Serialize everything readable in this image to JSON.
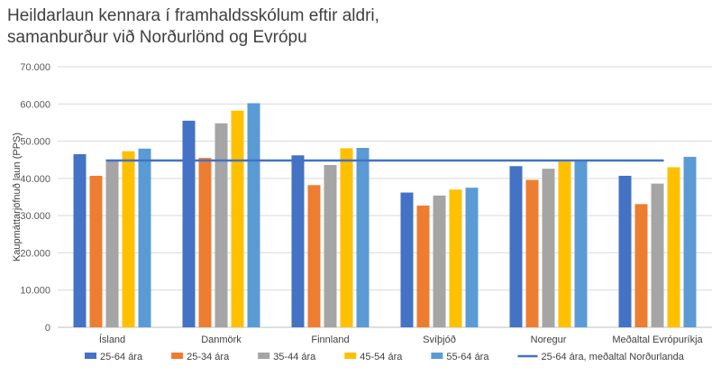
{
  "title": {
    "line1": "Heildarlaun kennara í framhaldsskólum eftir aldri,",
    "line2": "samanburður við Norðurlönd og Evrópu"
  },
  "chart_data": {
    "type": "bar",
    "title": "Heildarlaun kennara í framhaldsskólum eftir aldri, samanburður við Norðurlönd og Evrópu",
    "ylabel": "Kaupmáttarjöfnuð laun (PPS)",
    "xlabel": "",
    "ylim": [
      0,
      70000
    ],
    "yticks": [
      "0",
      "10.000",
      "20.000",
      "30.000",
      "40.000",
      "50.000",
      "60.000",
      "70.000"
    ],
    "grid": true,
    "legend_position": "bottom",
    "categories": [
      "Ísland",
      "Danmörk",
      "Finnland",
      "Svíþjóð",
      "Noregur",
      "Meðaltal Evrópuríkja"
    ],
    "series": [
      {
        "name": "25-64 ára",
        "color": "#4472C4",
        "values": [
          46500,
          55500,
          46200,
          36200,
          43300,
          40700
        ]
      },
      {
        "name": "25-34 ára",
        "color": "#ED7D31",
        "values": [
          40700,
          45500,
          38200,
          32700,
          39600,
          33100
        ]
      },
      {
        "name": "35-44 ára",
        "color": "#A5A5A5",
        "values": [
          44800,
          54800,
          43600,
          35400,
          42600,
          38600
        ]
      },
      {
        "name": "45-54 ára",
        "color": "#FFC000",
        "values": [
          47300,
          58200,
          48100,
          37000,
          44500,
          43000
        ]
      },
      {
        "name": "55-64 ára",
        "color": "#5B9BD5",
        "values": [
          48000,
          60200,
          48200,
          37500,
          45000,
          45800
        ]
      }
    ],
    "reference_line": {
      "name": "25-64 ára, meðaltal Norðurlanda",
      "color": "#4472C4",
      "value": 44800
    }
  }
}
